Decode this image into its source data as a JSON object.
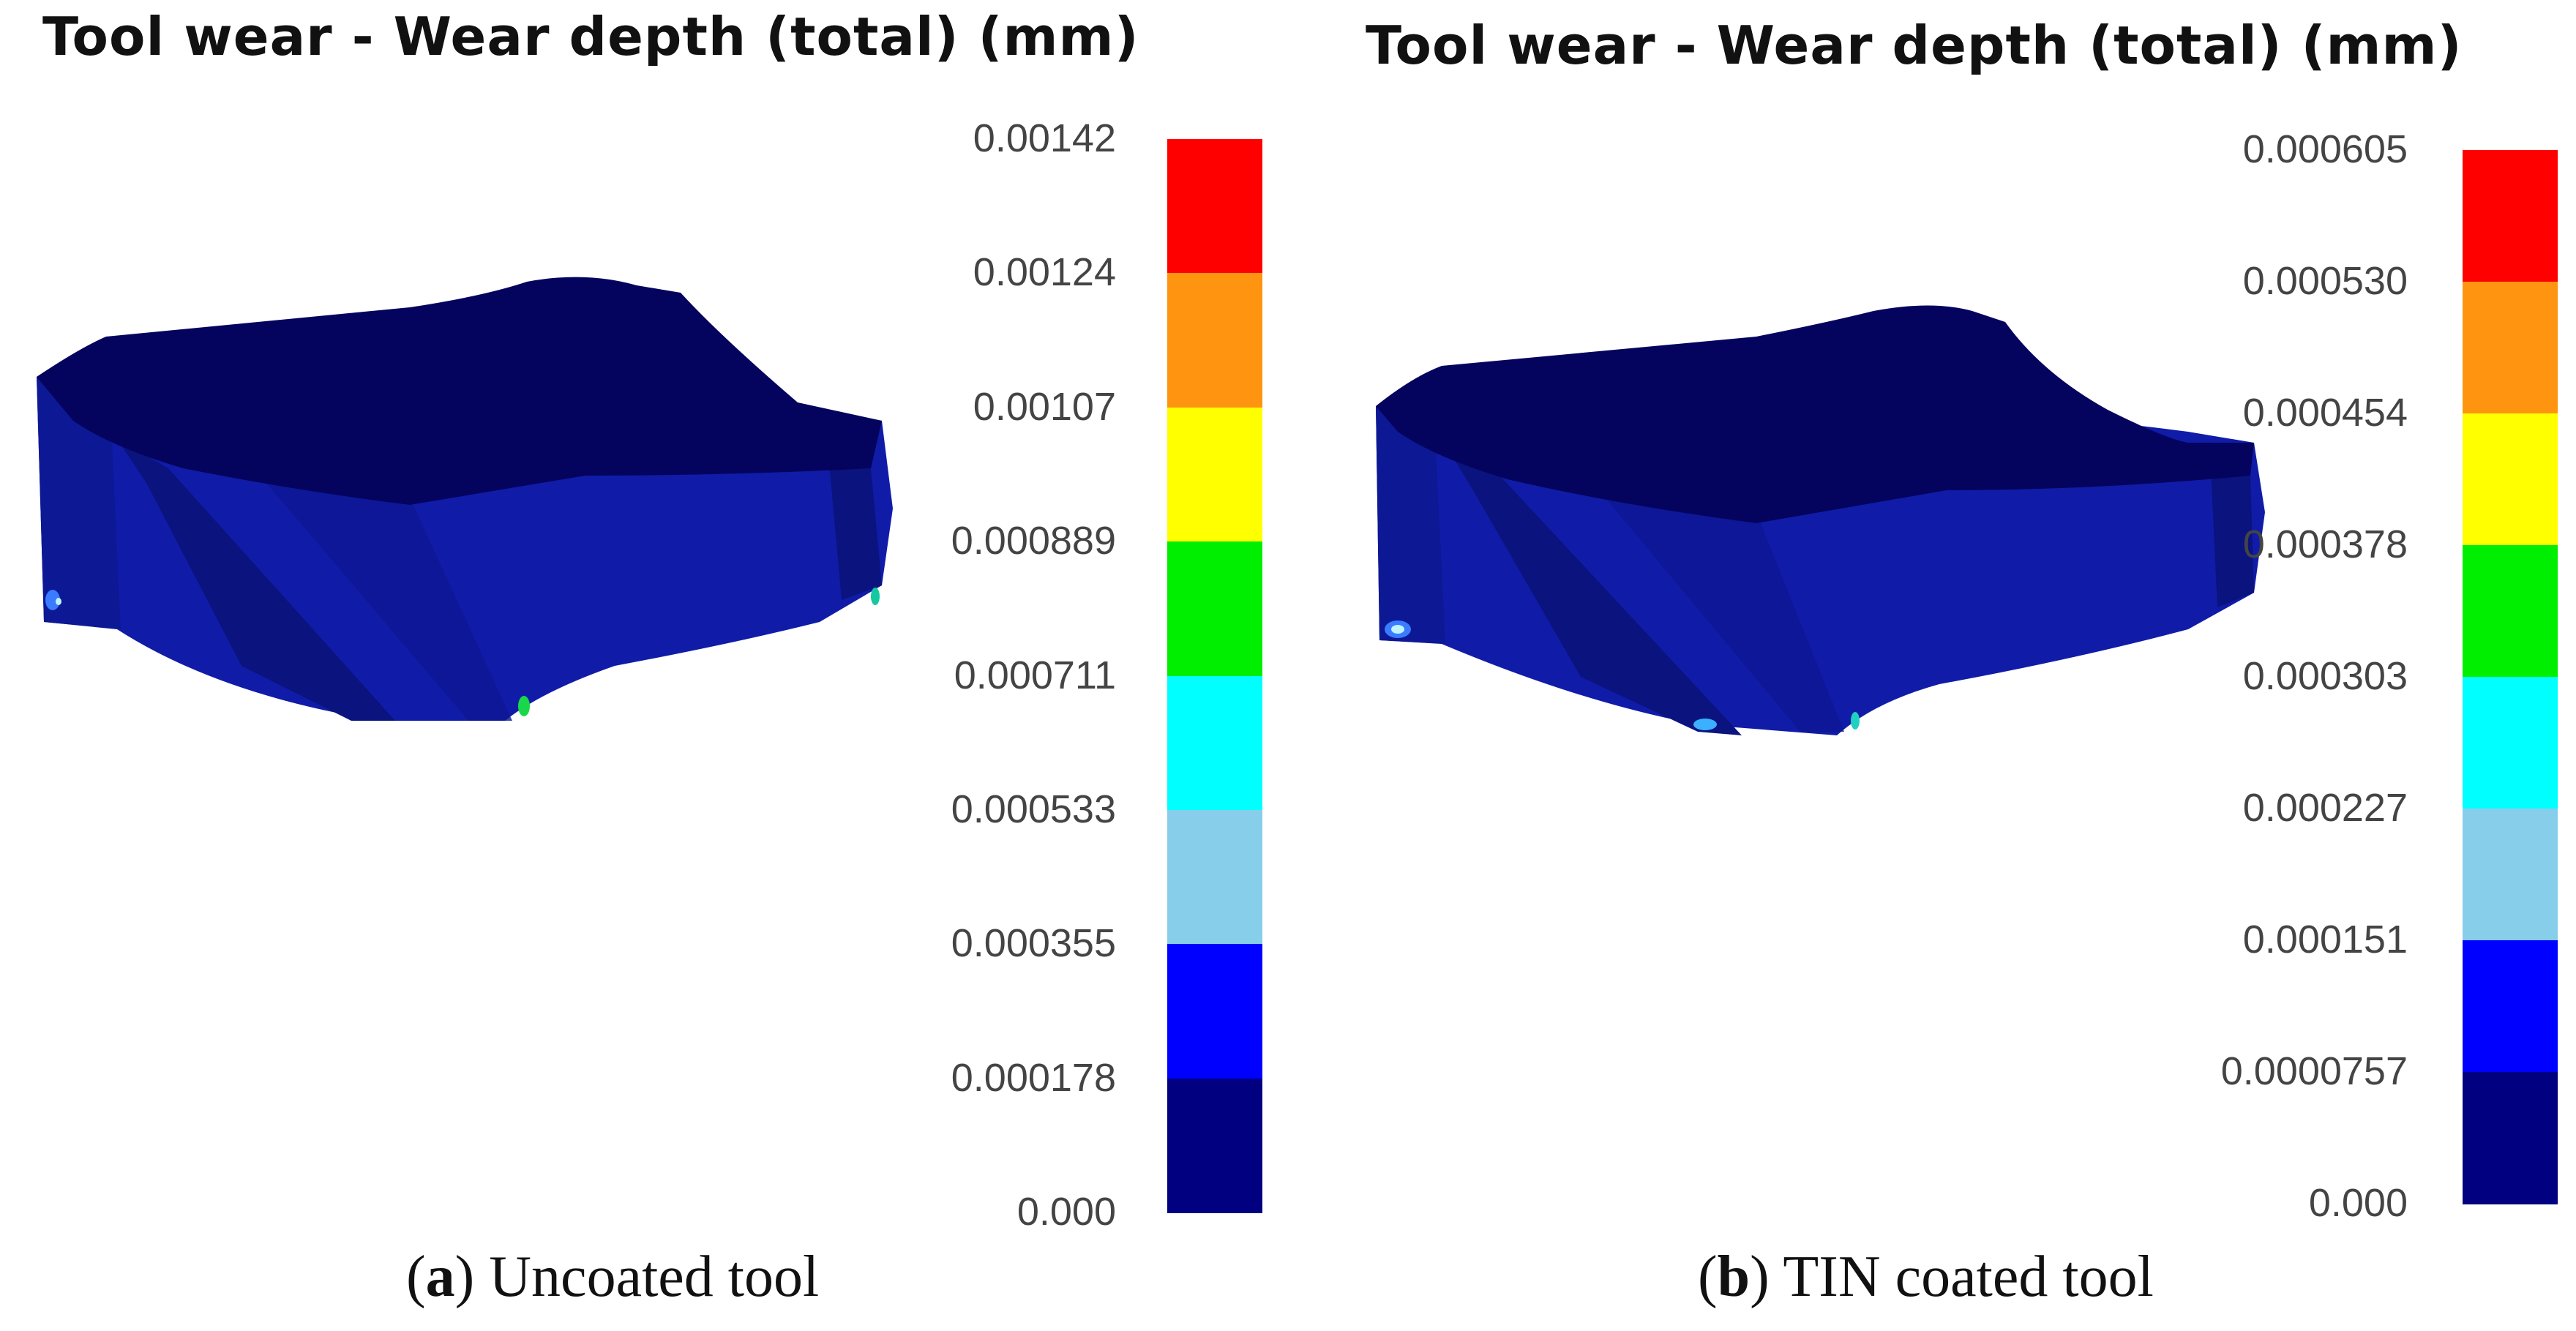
{
  "panels": [
    {
      "id": "a",
      "title": "Tool wear - Wear depth (total) (mm)",
      "caption_letter": "a",
      "caption_text": "Uncoated tool",
      "scale_labels": [
        "0.00142",
        "0.00124",
        "0.00107",
        "0.000889",
        "0.000711",
        "0.000533",
        "0.000355",
        "0.000178",
        "0.000"
      ]
    },
    {
      "id": "b",
      "title": "Tool wear - Wear depth (total) (mm)",
      "caption_letter": "b",
      "caption_text": "TIN coated tool",
      "scale_labels": [
        "0.000605",
        "0.000530",
        "0.000454",
        "0.000378",
        "0.000303",
        "0.000227",
        "0.000151",
        "0.0000757",
        "0.000"
      ]
    }
  ],
  "colors": {
    "scale": [
      "#ff0000",
      "#ff9410",
      "#ffff00",
      "#00ee00",
      "#00ffff",
      "#87ceeb",
      "#0000ff",
      "#000080"
    ],
    "tool_top": "#04045e",
    "tool_side": "#101ca8",
    "tool_side_dark": "#0b1486"
  }
}
